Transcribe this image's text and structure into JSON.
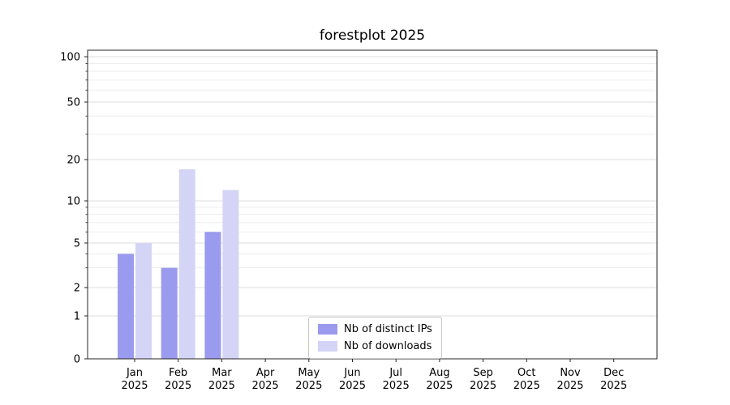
{
  "chart_data": {
    "type": "bar",
    "title": "forestplot 2025",
    "categories": [
      "Jan",
      "Feb",
      "Mar",
      "Apr",
      "May",
      "Jun",
      "Jul",
      "Aug",
      "Sep",
      "Oct",
      "Nov",
      "Dec"
    ],
    "x_year_label": "2025",
    "series": [
      {
        "name": "Nb of distinct IPs",
        "color": "#9a9aee",
        "values": [
          4,
          3,
          6,
          0,
          0,
          0,
          0,
          0,
          0,
          0,
          0,
          0
        ]
      },
      {
        "name": "Nb of downloads",
        "color": "#d4d4f6",
        "values": [
          5,
          17,
          12,
          0,
          0,
          0,
          0,
          0,
          0,
          0,
          0,
          0
        ]
      }
    ],
    "y_ticks": [
      0,
      1,
      2,
      5,
      10,
      20,
      50,
      100
    ],
    "y_scale": "symlog",
    "ylim": [
      0,
      100
    ],
    "grid": true,
    "legend_position": "lower center"
  }
}
